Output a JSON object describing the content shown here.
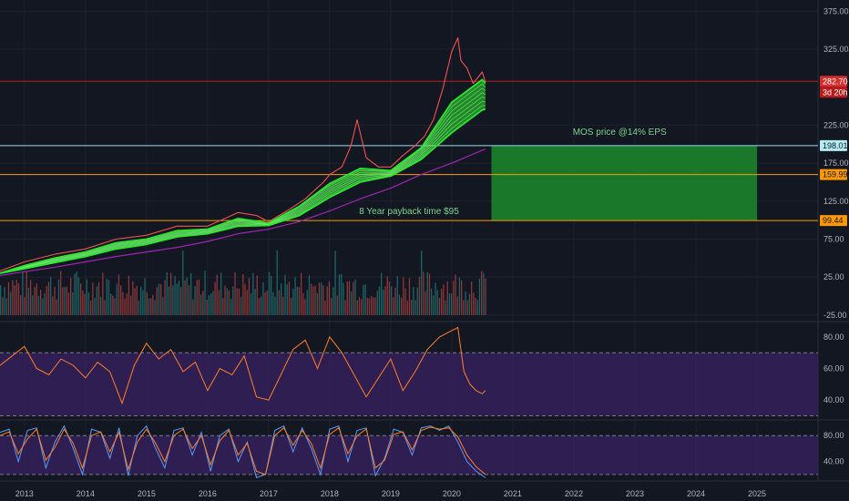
{
  "chart_data": [
    {
      "type": "line",
      "panel": "price",
      "price_axis": {
        "ticks": [
          375,
          325,
          225,
          175,
          125,
          75,
          25,
          -25
        ],
        "tick_labels": [
          "375.00",
          "325.00",
          "225.00",
          "175.00",
          "125.00",
          "75.00",
          "25.00",
          "-25.00"
        ],
        "ylim": [
          -30,
          385
        ]
      },
      "x_axis": {
        "categories": [
          "2013",
          "2014",
          "2015",
          "2016",
          "2017",
          "2018",
          "2019",
          "2020",
          "2021",
          "2022",
          "2023",
          "2024",
          "2025"
        ],
        "xlim": [
          2012.6,
          2026.0
        ]
      },
      "series": [
        {
          "key": "price",
          "color": "#ef5350",
          "x": [
            2012.6,
            2013.0,
            2013.5,
            2014.0,
            2014.5,
            2015.0,
            2015.5,
            2016.0,
            2016.5,
            2016.8,
            2017.0,
            2017.3,
            2017.6,
            2017.9,
            2018.0,
            2018.2,
            2018.35,
            2018.45,
            2018.6,
            2018.8,
            2019.0,
            2019.2,
            2019.4,
            2019.55,
            2019.7,
            2019.85,
            2020.0,
            2020.1,
            2020.15,
            2020.25,
            2020.35,
            2020.5,
            2020.55
          ],
          "y": [
            33,
            45,
            55,
            62,
            75,
            80,
            92,
            92,
            110,
            106,
            98,
            112,
            128,
            150,
            160,
            170,
            198,
            232,
            182,
            170,
            170,
            185,
            198,
            210,
            232,
            272,
            322,
            340,
            310,
            300,
            280,
            295,
            282
          ]
        },
        {
          "key": "ma_fast",
          "color": "#2ee62e",
          "x": [
            2012.6,
            2013.0,
            2013.5,
            2014.0,
            2014.5,
            2015.0,
            2015.5,
            2016.0,
            2016.5,
            2017.0,
            2017.5,
            2018.0,
            2018.5,
            2019.0,
            2019.5,
            2020.0,
            2020.5,
            2020.55
          ],
          "y": [
            30,
            40,
            50,
            58,
            70,
            75,
            86,
            88,
            102,
            96,
            118,
            148,
            168,
            165,
            195,
            255,
            285,
            280
          ]
        },
        {
          "key": "ma_slow",
          "color": "#2ee62e",
          "x": [
            2012.6,
            2013.0,
            2013.5,
            2014.0,
            2014.5,
            2015.0,
            2015.5,
            2016.0,
            2016.5,
            2017.0,
            2017.5,
            2018.0,
            2018.5,
            2019.0,
            2019.5,
            2020.0,
            2020.5,
            2020.55
          ],
          "y": [
            30,
            36,
            44,
            52,
            62,
            68,
            78,
            82,
            92,
            93,
            106,
            130,
            150,
            158,
            180,
            215,
            245,
            246
          ]
        },
        {
          "key": "ma_200",
          "color": "#9c27b0",
          "x": [
            2012.6,
            2013.0,
            2013.5,
            2014.0,
            2014.5,
            2015.0,
            2015.5,
            2016.0,
            2016.5,
            2017.0,
            2017.5,
            2018.0,
            2018.5,
            2019.0,
            2019.5,
            2020.0,
            2020.5,
            2020.55
          ],
          "y": [
            27,
            32,
            38,
            45,
            52,
            58,
            64,
            72,
            82,
            88,
            98,
            112,
            128,
            142,
            160,
            175,
            192,
            193
          ]
        }
      ],
      "horizontal_lines": [
        {
          "value": 282.7,
          "label": "282.70",
          "color": "#b71c1c",
          "tag_bg": "#d32f2f",
          "tag_fg": "#ffffff"
        },
        {
          "value": 198.01,
          "label": "198.01",
          "color": "#9fd8f0",
          "tag_bg": "#b2ebf2",
          "tag_fg": "#131722"
        },
        {
          "value": 159.99,
          "label": "159.99",
          "color": "#ff9800",
          "tag_bg": "#ff9800",
          "tag_fg": "#131722"
        },
        {
          "value": 99.44,
          "label": "99.44",
          "color": "#ff9800",
          "tag_bg": "#ff9800",
          "tag_fg": "#131722"
        }
      ],
      "countdown": {
        "label": "3d 20h",
        "tag_bg": "#b71c1c"
      },
      "zone": {
        "x_from": 2020.65,
        "x_to": 2025.0,
        "y_from": 99.44,
        "y_to": 198.01,
        "color": "#1b8a2a"
      },
      "annotations": [
        {
          "text": "MOS price @14% EPS",
          "x": 2022.75,
          "y": 212,
          "color": "#7fd38d"
        },
        {
          "text": "8 Year payback time $95",
          "x": 2019.3,
          "y": 108,
          "color": "#7fd38d"
        }
      ],
      "volume": {
        "x_from": 2012.6,
        "x_to": 2020.55,
        "baseline": -25,
        "bars_up_to": 50,
        "color_up": "#26a69a",
        "color_down": "#ef5350"
      }
    },
    {
      "type": "line",
      "panel": "rsi",
      "ticks": [
        80,
        60,
        40
      ],
      "tick_labels": [
        "80.00",
        "60.00",
        "40.00"
      ],
      "ylim": [
        28,
        88
      ],
      "bands": [
        70,
        30
      ],
      "band_fill": "#3b2266",
      "series": [
        {
          "key": "rsi",
          "color": "#ff7f27",
          "x": [
            2012.6,
            2012.8,
            2013.0,
            2013.2,
            2013.4,
            2013.6,
            2013.8,
            2014.0,
            2014.2,
            2014.4,
            2014.6,
            2014.8,
            2015.0,
            2015.2,
            2015.4,
            2015.6,
            2015.8,
            2016.0,
            2016.2,
            2016.4,
            2016.6,
            2016.8,
            2017.0,
            2017.2,
            2017.4,
            2017.6,
            2017.8,
            2018.0,
            2018.2,
            2018.4,
            2018.6,
            2018.8,
            2019.0,
            2019.2,
            2019.4,
            2019.6,
            2019.8,
            2020.0,
            2020.1,
            2020.2,
            2020.3,
            2020.4,
            2020.5,
            2020.55
          ],
          "y": [
            62,
            68,
            74,
            60,
            56,
            66,
            62,
            54,
            64,
            58,
            38,
            62,
            76,
            66,
            72,
            58,
            64,
            46,
            60,
            56,
            68,
            42,
            40,
            56,
            72,
            78,
            60,
            80,
            70,
            56,
            42,
            54,
            66,
            46,
            58,
            72,
            80,
            84,
            86,
            58,
            50,
            46,
            44,
            46
          ]
        }
      ]
    },
    {
      "type": "line",
      "panel": "stoch_rsi",
      "ticks": [
        80,
        40
      ],
      "tick_labels": [
        "80.00",
        "40.00"
      ],
      "ylim": [
        10,
        100
      ],
      "bands": [
        80,
        20
      ],
      "band_fill": "#3b2266",
      "series": [
        {
          "key": "k",
          "color": "#5b9cf6",
          "x": [
            2012.6,
            2012.75,
            2012.9,
            2013.05,
            2013.2,
            2013.35,
            2013.5,
            2013.65,
            2013.8,
            2013.95,
            2014.1,
            2014.25,
            2014.4,
            2014.55,
            2014.7,
            2014.85,
            2015.0,
            2015.15,
            2015.3,
            2015.45,
            2015.6,
            2015.75,
            2015.9,
            2016.05,
            2016.2,
            2016.35,
            2016.5,
            2016.65,
            2016.8,
            2016.95,
            2017.1,
            2017.25,
            2017.4,
            2017.55,
            2017.7,
            2017.85,
            2018.0,
            2018.15,
            2018.3,
            2018.45,
            2018.6,
            2018.75,
            2018.9,
            2019.05,
            2019.2,
            2019.35,
            2019.5,
            2019.65,
            2019.8,
            2019.95,
            2020.1,
            2020.25,
            2020.4,
            2020.55
          ],
          "y": [
            85,
            90,
            40,
            88,
            92,
            30,
            70,
            95,
            60,
            20,
            90,
            85,
            45,
            92,
            18,
            80,
            95,
            60,
            30,
            88,
            92,
            50,
            85,
            25,
            80,
            90,
            40,
            70,
            15,
            20,
            88,
            95,
            55,
            92,
            60,
            20,
            90,
            95,
            40,
            88,
            92,
            18,
            45,
            90,
            85,
            50,
            92,
            95,
            88,
            95,
            70,
            40,
            25,
            15
          ]
        },
        {
          "key": "d",
          "color": "#ff7f27",
          "x": [
            2012.6,
            2012.75,
            2012.9,
            2013.05,
            2013.2,
            2013.35,
            2013.5,
            2013.65,
            2013.8,
            2013.95,
            2014.1,
            2014.25,
            2014.4,
            2014.55,
            2014.7,
            2014.85,
            2015.0,
            2015.15,
            2015.3,
            2015.45,
            2015.6,
            2015.75,
            2015.9,
            2016.05,
            2016.2,
            2016.35,
            2016.5,
            2016.65,
            2016.8,
            2016.95,
            2017.1,
            2017.25,
            2017.4,
            2017.55,
            2017.7,
            2017.85,
            2018.0,
            2018.15,
            2018.3,
            2018.45,
            2018.6,
            2018.75,
            2018.9,
            2019.05,
            2019.2,
            2019.35,
            2019.5,
            2019.65,
            2019.8,
            2019.95,
            2020.1,
            2020.25,
            2020.4,
            2020.55
          ],
          "y": [
            80,
            86,
            52,
            75,
            90,
            42,
            62,
            90,
            68,
            30,
            80,
            86,
            55,
            85,
            28,
            70,
            90,
            68,
            40,
            80,
            90,
            60,
            80,
            35,
            72,
            88,
            50,
            68,
            25,
            20,
            80,
            92,
            65,
            88,
            68,
            30,
            82,
            92,
            52,
            80,
            90,
            30,
            42,
            82,
            86,
            58,
            88,
            93,
            90,
            92,
            78,
            50,
            32,
            20
          ]
        }
      ]
    }
  ]
}
